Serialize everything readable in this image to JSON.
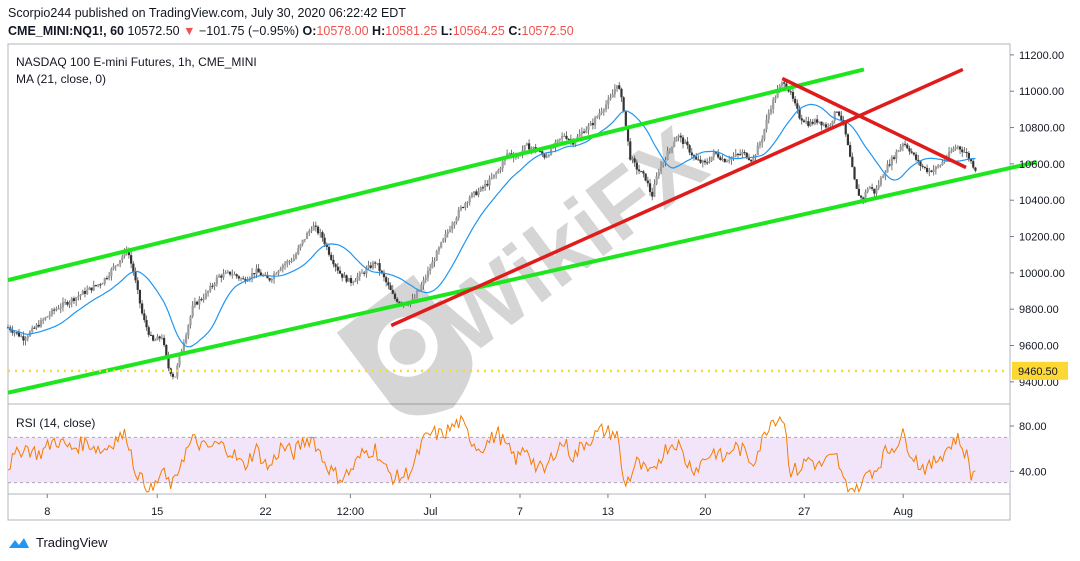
{
  "header": {
    "line1": "Scorpio244 published on TradingView.com, July 30, 2020 06:22:42 EDT",
    "symbol": "CME_MINI:NQ1!, 60",
    "last": "10572.50",
    "change": "−101.75 (−0.95%)",
    "o_label": "O:",
    "o": "10578.00",
    "h_label": "H:",
    "h": "10581.25",
    "l_label": "L:",
    "l": "10564.25",
    "c_label": "C:",
    "c": "10572.50"
  },
  "footer": {
    "brand": "TradingView"
  },
  "watermark": "WikiFX",
  "colors": {
    "channel": "#1ee61e",
    "redline": "#e01b1b",
    "ma": "#2196f3",
    "rsi": "#f57c00",
    "rsi_band": "#f3e5f9",
    "price_label": "#fdd835",
    "candle": "#555555"
  },
  "chart_data": [
    {
      "type": "candlestick",
      "title": "NASDAQ 100 E-mini Futures, 1h, CME_MINI",
      "indicator": "MA (21, close, 0)",
      "x_tick_labels": [
        "8",
        "15",
        "22",
        "12:00",
        "Jul",
        "7",
        "13",
        "20",
        "27",
        "Aug"
      ],
      "x_tick_positions": [
        0.5,
        7.5,
        14.4,
        19.8,
        24.9,
        30.6,
        36.2,
        42.4,
        48.7,
        55.0
      ],
      "xlim": [
        -2,
        61.8
      ],
      "y_tick_labels": [
        "9400.00",
        "9600.00",
        "9800.00",
        "10000.00",
        "10200.00",
        "10400.00",
        "10600.00",
        "10800.00",
        "11000.00",
        "11200.00"
      ],
      "ylim": [
        9300,
        11260
      ],
      "price_line": {
        "value": 9460.5,
        "label": "9460.50",
        "style": "dotted"
      },
      "close_path": [
        [
          -2,
          9700
        ],
        [
          -1,
          9640
        ],
        [
          0,
          9720
        ],
        [
          1,
          9800
        ],
        [
          2,
          9850
        ],
        [
          3,
          9900
        ],
        [
          4,
          9950
        ],
        [
          5,
          10060
        ],
        [
          5.6,
          10130
        ],
        [
          6,
          10000
        ],
        [
          6.6,
          9750
        ],
        [
          7.2,
          9620
        ],
        [
          7.8,
          9650
        ],
        [
          8.2,
          9480
        ],
        [
          8.6,
          9420
        ],
        [
          9,
          9560
        ],
        [
          9.8,
          9820
        ],
        [
          10.6,
          9880
        ],
        [
          11.4,
          9980
        ],
        [
          12.2,
          10000
        ],
        [
          13,
          9960
        ],
        [
          13.8,
          10010
        ],
        [
          14.6,
          9960
        ],
        [
          15.4,
          10040
        ],
        [
          16.2,
          10080
        ],
        [
          16.8,
          10180
        ],
        [
          17.4,
          10260
        ],
        [
          18,
          10200
        ],
        [
          18.6,
          10080
        ],
        [
          19.2,
          9990
        ],
        [
          19.8,
          9950
        ],
        [
          20.6,
          10000
        ],
        [
          21.4,
          10060
        ],
        [
          22,
          9960
        ],
        [
          22.6,
          9860
        ],
        [
          23.2,
          9830
        ],
        [
          23.8,
          9850
        ],
        [
          24.4,
          9940
        ],
        [
          25,
          10050
        ],
        [
          25.6,
          10160
        ],
        [
          26.2,
          10260
        ],
        [
          26.8,
          10350
        ],
        [
          27.4,
          10420
        ],
        [
          28,
          10450
        ],
        [
          28.6,
          10500
        ],
        [
          29.2,
          10560
        ],
        [
          29.8,
          10660
        ],
        [
          30.4,
          10640
        ],
        [
          31,
          10700
        ],
        [
          31.6,
          10680
        ],
        [
          32.2,
          10640
        ],
        [
          32.8,
          10700
        ],
        [
          33.4,
          10760
        ],
        [
          34,
          10720
        ],
        [
          34.6,
          10780
        ],
        [
          35.2,
          10820
        ],
        [
          35.8,
          10900
        ],
        [
          36.4,
          10960
        ],
        [
          36.8,
          11050
        ],
        [
          37.2,
          10900
        ],
        [
          37.6,
          10640
        ],
        [
          38,
          10580
        ],
        [
          38.6,
          10520
        ],
        [
          39,
          10420
        ],
        [
          39.4,
          10560
        ],
        [
          40,
          10660
        ],
        [
          40.6,
          10760
        ],
        [
          41.2,
          10700
        ],
        [
          41.8,
          10620
        ],
        [
          42.4,
          10600
        ],
        [
          43,
          10660
        ],
        [
          43.6,
          10620
        ],
        [
          44.2,
          10640
        ],
        [
          44.8,
          10660
        ],
        [
          45.4,
          10620
        ],
        [
          46,
          10740
        ],
        [
          46.5,
          10900
        ],
        [
          47,
          11000
        ],
        [
          47.4,
          11060
        ],
        [
          47.8,
          10990
        ],
        [
          48.4,
          10860
        ],
        [
          49,
          10820
        ],
        [
          49.6,
          10840
        ],
        [
          50.2,
          10800
        ],
        [
          50.8,
          10900
        ],
        [
          51.2,
          10820
        ],
        [
          51.6,
          10640
        ],
        [
          52,
          10460
        ],
        [
          52.4,
          10400
        ],
        [
          52.8,
          10480
        ],
        [
          53.2,
          10440
        ],
        [
          53.8,
          10560
        ],
        [
          54.4,
          10640
        ],
        [
          55,
          10720
        ],
        [
          55.4,
          10680
        ],
        [
          56,
          10600
        ],
        [
          56.6,
          10560
        ],
        [
          57.2,
          10580
        ],
        [
          57.8,
          10640
        ],
        [
          58.4,
          10700
        ],
        [
          59,
          10660
        ],
        [
          59.4,
          10600
        ],
        [
          59.6,
          10572.5
        ]
      ],
      "channel_lines": [
        {
          "name": "upper channel",
          "from": [
            -2,
            9960
          ],
          "to": [
            52.5,
            11120
          ]
        },
        {
          "name": "lower channel",
          "from": [
            -2,
            9340
          ],
          "to": [
            63.5,
            10610
          ]
        }
      ],
      "red_lines": [
        {
          "name": "rising trendline",
          "from": [
            22.4,
            9710
          ],
          "to": [
            58.8,
            11120
          ]
        },
        {
          "name": "falling trendline",
          "from": [
            47.3,
            11070
          ],
          "to": [
            59,
            10580
          ]
        }
      ]
    },
    {
      "type": "line",
      "title": "RSI (14, close)",
      "y_tick_labels": [
        "40.00",
        "80.00"
      ],
      "ylim": [
        20,
        95
      ],
      "band": [
        30,
        70
      ],
      "rsi_path": [
        [
          -2,
          45
        ],
        [
          -1,
          62
        ],
        [
          0,
          55
        ],
        [
          1,
          68
        ],
        [
          2,
          60
        ],
        [
          3,
          66
        ],
        [
          4,
          58
        ],
        [
          5,
          70
        ],
        [
          5.6,
          72
        ],
        [
          6,
          45
        ],
        [
          6.6,
          30
        ],
        [
          7.2,
          22
        ],
        [
          7.8,
          40
        ],
        [
          8.2,
          30
        ],
        [
          8.6,
          28
        ],
        [
          9,
          50
        ],
        [
          9.8,
          68
        ],
        [
          10.6,
          60
        ],
        [
          11.4,
          64
        ],
        [
          12.2,
          58
        ],
        [
          13,
          44
        ],
        [
          13.8,
          60
        ],
        [
          14.6,
          42
        ],
        [
          15.4,
          62
        ],
        [
          16.2,
          56
        ],
        [
          16.8,
          66
        ],
        [
          17.4,
          70
        ],
        [
          18,
          52
        ],
        [
          18.6,
          40
        ],
        [
          19.2,
          34
        ],
        [
          19.8,
          40
        ],
        [
          20.6,
          56
        ],
        [
          21.4,
          60
        ],
        [
          22,
          42
        ],
        [
          22.6,
          34
        ],
        [
          23.2,
          36
        ],
        [
          23.8,
          44
        ],
        [
          24.4,
          66
        ],
        [
          25,
          74
        ],
        [
          25.6,
          72
        ],
        [
          26.2,
          78
        ],
        [
          26.8,
          84
        ],
        [
          27.4,
          70
        ],
        [
          28,
          60
        ],
        [
          28.6,
          66
        ],
        [
          29.2,
          74
        ],
        [
          29.8,
          60
        ],
        [
          30.4,
          50
        ],
        [
          31,
          62
        ],
        [
          31.6,
          44
        ],
        [
          32.2,
          40
        ],
        [
          32.8,
          58
        ],
        [
          33.4,
          66
        ],
        [
          34,
          52
        ],
        [
          34.6,
          64
        ],
        [
          35.2,
          70
        ],
        [
          35.8,
          76
        ],
        [
          36.4,
          74
        ],
        [
          36.8,
          72
        ],
        [
          37.2,
          30
        ],
        [
          37.6,
          34
        ],
        [
          38,
          48
        ],
        [
          38.6,
          40
        ],
        [
          39,
          36
        ],
        [
          39.4,
          50
        ],
        [
          40,
          62
        ],
        [
          40.6,
          66
        ],
        [
          41.2,
          48
        ],
        [
          41.8,
          42
        ],
        [
          42.4,
          52
        ],
        [
          43,
          58
        ],
        [
          43.6,
          50
        ],
        [
          44.2,
          62
        ],
        [
          44.8,
          58
        ],
        [
          45.4,
          48
        ],
        [
          46,
          66
        ],
        [
          46.5,
          84
        ],
        [
          47,
          88
        ],
        [
          47.4,
          88
        ],
        [
          47.8,
          40
        ],
        [
          48.4,
          42
        ],
        [
          49,
          52
        ],
        [
          49.6,
          44
        ],
        [
          50.2,
          50
        ],
        [
          50.8,
          52
        ],
        [
          51.2,
          30
        ],
        [
          51.6,
          26
        ],
        [
          52,
          22
        ],
        [
          52.4,
          28
        ],
        [
          52.8,
          42
        ],
        [
          53.2,
          40
        ],
        [
          53.8,
          56
        ],
        [
          54.4,
          62
        ],
        [
          55,
          72
        ],
        [
          55.4,
          60
        ],
        [
          56,
          46
        ],
        [
          56.6,
          42
        ],
        [
          57.2,
          52
        ],
        [
          57.8,
          60
        ],
        [
          58.4,
          70
        ],
        [
          59,
          56
        ],
        [
          59.4,
          34
        ],
        [
          59.6,
          42
        ]
      ]
    }
  ]
}
